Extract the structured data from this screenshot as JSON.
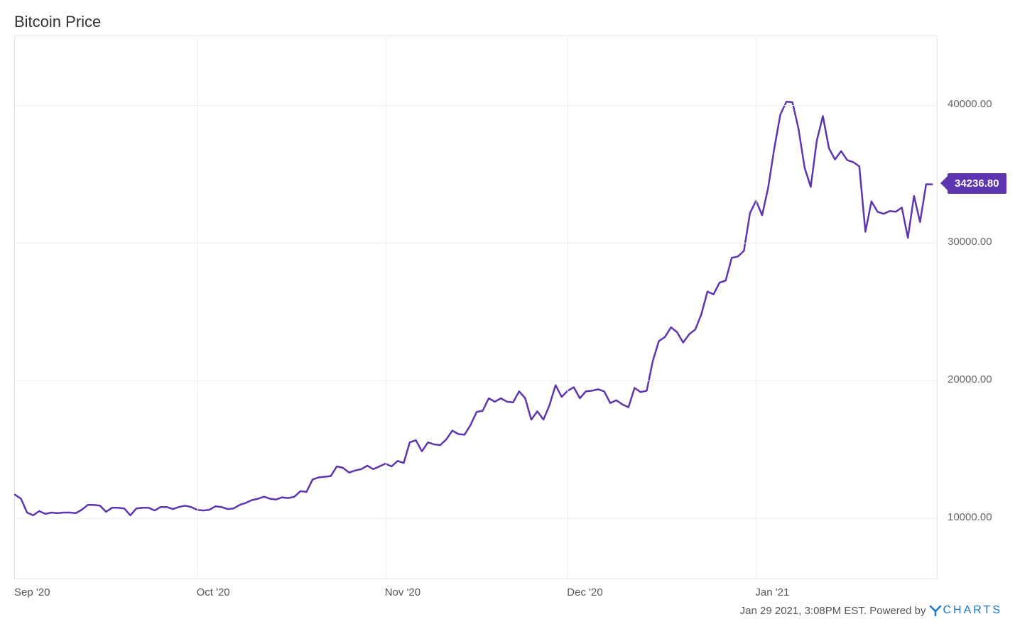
{
  "chart": {
    "type": "line",
    "title": "Bitcoin Price",
    "title_fontsize": 22,
    "title_color": "#333333",
    "background_color": "#ffffff",
    "plot_border_color": "#e5e5e5",
    "grid_color": "#eeeeee",
    "line_color": "#5e35b1",
    "line_width": 2.5,
    "y_axis": {
      "min": 5500,
      "max": 45000,
      "ticks": [
        10000,
        20000,
        30000,
        40000
      ],
      "tick_labels": [
        "10000.00",
        "20000.00",
        "30000.00",
        "40000.00"
      ],
      "label_color": "#666666",
      "label_fontsize": 15
    },
    "x_axis": {
      "min": 0,
      "max": 152,
      "ticks": [
        0,
        30,
        61,
        91,
        122
      ],
      "tick_labels": [
        "Sep '20",
        "Oct '20",
        "Nov '20",
        "Dec '20",
        "Jan '21"
      ],
      "label_color": "#555555",
      "label_fontsize": 15
    },
    "series": [
      {
        "name": "Bitcoin Price",
        "color": "#5e35b1",
        "data": [
          [
            0,
            11700
          ],
          [
            1,
            11400
          ],
          [
            2,
            10400
          ],
          [
            3,
            10200
          ],
          [
            4,
            10500
          ],
          [
            5,
            10300
          ],
          [
            6,
            10400
          ],
          [
            7,
            10350
          ],
          [
            8,
            10400
          ],
          [
            9,
            10400
          ],
          [
            10,
            10350
          ],
          [
            11,
            10600
          ],
          [
            12,
            10950
          ],
          [
            13,
            10950
          ],
          [
            14,
            10900
          ],
          [
            15,
            10450
          ],
          [
            16,
            10750
          ],
          [
            17,
            10750
          ],
          [
            18,
            10700
          ],
          [
            19,
            10200
          ],
          [
            20,
            10700
          ],
          [
            21,
            10750
          ],
          [
            22,
            10750
          ],
          [
            23,
            10550
          ],
          [
            24,
            10800
          ],
          [
            25,
            10800
          ],
          [
            26,
            10650
          ],
          [
            27,
            10800
          ],
          [
            28,
            10900
          ],
          [
            29,
            10800
          ],
          [
            30,
            10600
          ],
          [
            31,
            10550
          ],
          [
            32,
            10600
          ],
          [
            33,
            10850
          ],
          [
            34,
            10800
          ],
          [
            35,
            10650
          ],
          [
            36,
            10700
          ],
          [
            37,
            10950
          ],
          [
            38,
            11100
          ],
          [
            39,
            11300
          ],
          [
            40,
            11400
          ],
          [
            41,
            11550
          ],
          [
            42,
            11400
          ],
          [
            43,
            11350
          ],
          [
            44,
            11500
          ],
          [
            45,
            11450
          ],
          [
            46,
            11550
          ],
          [
            47,
            11950
          ],
          [
            48,
            11900
          ],
          [
            49,
            12800
          ],
          [
            50,
            12950
          ],
          [
            51,
            13000
          ],
          [
            52,
            13050
          ],
          [
            53,
            13750
          ],
          [
            54,
            13650
          ],
          [
            55,
            13300
          ],
          [
            56,
            13450
          ],
          [
            57,
            13550
          ],
          [
            58,
            13800
          ],
          [
            59,
            13550
          ],
          [
            60,
            13750
          ],
          [
            61,
            13950
          ],
          [
            62,
            13750
          ],
          [
            63,
            14150
          ],
          [
            64,
            14000
          ],
          [
            65,
            15500
          ],
          [
            66,
            15650
          ],
          [
            67,
            14850
          ],
          [
            68,
            15500
          ],
          [
            69,
            15350
          ],
          [
            70,
            15300
          ],
          [
            71,
            15700
          ],
          [
            72,
            16350
          ],
          [
            73,
            16100
          ],
          [
            74,
            16050
          ],
          [
            75,
            16750
          ],
          [
            76,
            17700
          ],
          [
            77,
            17800
          ],
          [
            78,
            18700
          ],
          [
            79,
            18450
          ],
          [
            80,
            18700
          ],
          [
            81,
            18450
          ],
          [
            82,
            18400
          ],
          [
            83,
            19200
          ],
          [
            84,
            18700
          ],
          [
            85,
            17150
          ],
          [
            86,
            17750
          ],
          [
            87,
            17150
          ],
          [
            88,
            18200
          ],
          [
            89,
            19650
          ],
          [
            90,
            18800
          ],
          [
            91,
            19250
          ],
          [
            92,
            19500
          ],
          [
            93,
            18700
          ],
          [
            94,
            19200
          ],
          [
            95,
            19250
          ],
          [
            96,
            19350
          ],
          [
            97,
            19200
          ],
          [
            98,
            18350
          ],
          [
            99,
            18550
          ],
          [
            100,
            18250
          ],
          [
            101,
            18050
          ],
          [
            102,
            19450
          ],
          [
            103,
            19150
          ],
          [
            104,
            19250
          ],
          [
            105,
            21400
          ],
          [
            106,
            22850
          ],
          [
            107,
            23150
          ],
          [
            108,
            23850
          ],
          [
            109,
            23500
          ],
          [
            110,
            22750
          ],
          [
            111,
            23350
          ],
          [
            112,
            23700
          ],
          [
            113,
            24800
          ],
          [
            114,
            26450
          ],
          [
            115,
            26250
          ],
          [
            116,
            27100
          ],
          [
            117,
            27250
          ],
          [
            118,
            28900
          ],
          [
            119,
            29000
          ],
          [
            120,
            29400
          ],
          [
            121,
            32150
          ],
          [
            122,
            33050
          ],
          [
            123,
            32000
          ],
          [
            124,
            34000
          ],
          [
            125,
            36850
          ],
          [
            126,
            39300
          ],
          [
            127,
            40250
          ],
          [
            128,
            40200
          ],
          [
            129,
            38250
          ],
          [
            130,
            35450
          ],
          [
            131,
            34050
          ],
          [
            132,
            37400
          ],
          [
            133,
            39200
          ],
          [
            134,
            36850
          ],
          [
            135,
            36050
          ],
          [
            136,
            36650
          ],
          [
            137,
            36000
          ],
          [
            138,
            35850
          ],
          [
            139,
            35550
          ],
          [
            140,
            30800
          ],
          [
            141,
            33000
          ],
          [
            142,
            32250
          ],
          [
            143,
            32100
          ],
          [
            144,
            32300
          ],
          [
            145,
            32250
          ],
          [
            146,
            32550
          ],
          [
            147,
            30350
          ],
          [
            148,
            33400
          ],
          [
            149,
            31500
          ],
          [
            150,
            34250
          ],
          [
            151,
            34236.8
          ]
        ]
      }
    ],
    "callout": {
      "value": "34236.80",
      "background_color": "#5e35b1",
      "text_color": "#ffffff",
      "fontsize": 15
    },
    "footer": {
      "timestamp": "Jan 29 2021, 3:08PM EST.",
      "powered_by": "Powered by",
      "brand": "CHARTS",
      "brand_color": "#1976d2",
      "fontsize": 15,
      "color": "#555555"
    }
  }
}
